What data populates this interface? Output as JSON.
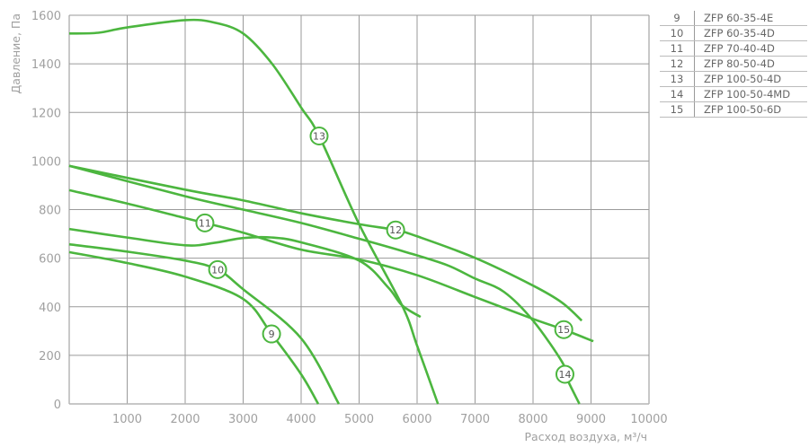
{
  "chart_data": {
    "type": "line",
    "xlabel": "Расход воздуха, м³/ч",
    "ylabel": "Давление, Па",
    "xlim": [
      0,
      10000
    ],
    "ylim": [
      0,
      1600
    ],
    "xticks": [
      "1000",
      "2000",
      "3000",
      "4000",
      "5000",
      "6000",
      "7000",
      "8000",
      "9000",
      "10000"
    ],
    "yticks": [
      "0",
      "200",
      "400",
      "600",
      "800",
      "1000",
      "1200",
      "1400",
      "1600"
    ],
    "grid": true,
    "line_color": "#4cb63f",
    "curves": [
      {
        "points": [
          [
            0,
            625
          ],
          [
            1000,
            580
          ],
          [
            2000,
            524
          ],
          [
            3000,
            432
          ],
          [
            3490,
            288
          ],
          [
            4000,
            122
          ],
          [
            4295,
            0
          ]
        ]
      },
      {
        "points": [
          [
            0,
            657
          ],
          [
            1000,
            627
          ],
          [
            2000,
            590
          ],
          [
            2560,
            553
          ],
          [
            3000,
            472
          ],
          [
            4000,
            270
          ],
          [
            4650,
            0
          ]
        ]
      },
      {
        "points": [
          [
            0,
            880
          ],
          [
            1000,
            825
          ],
          [
            2000,
            765
          ],
          [
            2340,
            745
          ],
          [
            3000,
            705
          ],
          [
            4000,
            635
          ],
          [
            5000,
            595
          ],
          [
            6000,
            530
          ],
          [
            7000,
            440
          ],
          [
            8000,
            350
          ],
          [
            8530,
            306
          ],
          [
            9040,
            258
          ]
        ]
      },
      {
        "points": [
          [
            0,
            720
          ],
          [
            1000,
            685
          ],
          [
            2000,
            653
          ],
          [
            2500,
            663
          ],
          [
            3000,
            683
          ],
          [
            3500,
            685
          ],
          [
            4000,
            665
          ],
          [
            5000,
            590
          ],
          [
            5500,
            480
          ],
          [
            5740,
            406
          ],
          [
            6060,
            358
          ]
        ]
      },
      {
        "points": [
          [
            0,
            980
          ],
          [
            2000,
            882
          ],
          [
            3000,
            838
          ],
          [
            4000,
            785
          ],
          [
            5000,
            740
          ],
          [
            5630,
            716
          ],
          [
            6000,
            690
          ],
          [
            7000,
            601
          ],
          [
            8000,
            487
          ],
          [
            8500,
            417
          ],
          [
            8840,
            343
          ]
        ]
      },
      {
        "points": [
          [
            0,
            980
          ],
          [
            2000,
            855
          ],
          [
            3000,
            800
          ],
          [
            4000,
            745
          ],
          [
            5000,
            680
          ],
          [
            5780,
            627
          ],
          [
            6510,
            572
          ],
          [
            7000,
            516
          ],
          [
            7500,
            461
          ],
          [
            8000,
            343
          ],
          [
            8500,
            173
          ],
          [
            8550,
            122
          ],
          [
            8800,
            0
          ]
        ]
      },
      {
        "points": [
          [
            0,
            1525
          ],
          [
            500,
            1528
          ],
          [
            1000,
            1550
          ],
          [
            2000,
            1580
          ],
          [
            2500,
            1570
          ],
          [
            3000,
            1525
          ],
          [
            3500,
            1400
          ],
          [
            4000,
            1220
          ],
          [
            4310,
            1103
          ],
          [
            5000,
            740
          ],
          [
            5740,
            406
          ],
          [
            6000,
            240
          ],
          [
            6360,
            0
          ]
        ]
      }
    ],
    "labels": [
      {
        "text": "9",
        "x": 3490,
        "y": 288
      },
      {
        "text": "10",
        "x": 2560,
        "y": 553
      },
      {
        "text": "11",
        "x": 2340,
        "y": 745
      },
      {
        "text": "12",
        "x": 5630,
        "y": 716
      },
      {
        "text": "13",
        "x": 4310,
        "y": 1103
      },
      {
        "text": "14",
        "x": 8550,
        "y": 122
      },
      {
        "text": "15",
        "x": 8530,
        "y": 306
      }
    ],
    "legend": [
      {
        "num": "9",
        "model": "ZFP 60-35-4E"
      },
      {
        "num": "10",
        "model": "ZFP 60-35-4D"
      },
      {
        "num": "11",
        "model": "ZFP 70-40-4D"
      },
      {
        "num": "12",
        "model": "ZFP 80-50-4D"
      },
      {
        "num": "13",
        "model": "ZFP 100-50-4D"
      },
      {
        "num": "14",
        "model": "ZFP 100-50-4MD"
      },
      {
        "num": "15",
        "model": "ZFP 100-50-6D"
      }
    ],
    "legend_placement": "top-right"
  }
}
